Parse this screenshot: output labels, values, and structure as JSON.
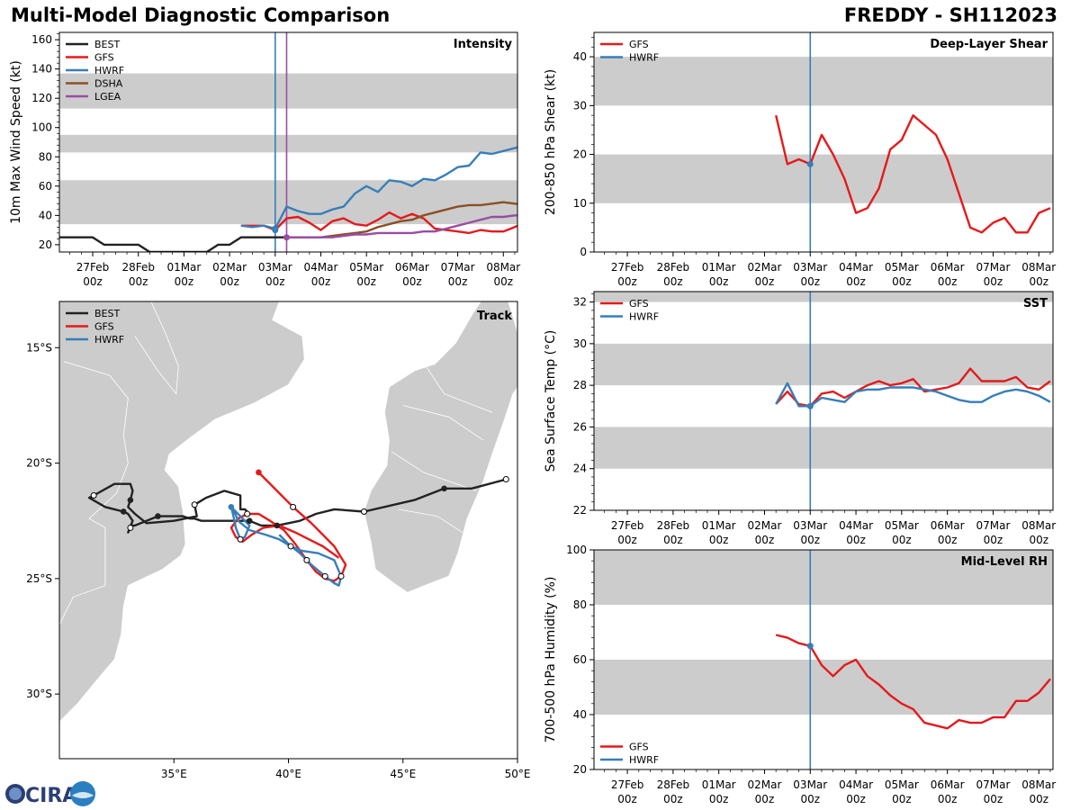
{
  "header": {
    "title": "Multi-Model Diagnostic Comparison",
    "storm": "FREDDY - SH112023"
  },
  "logo": {
    "text": "CIRA"
  },
  "colors": {
    "BEST": "#222222",
    "GFS": "#e41a1c",
    "HWRF": "#377eb8",
    "DSHA": "#8c4f24",
    "LGEA": "#984ea3",
    "band": "#cccccc",
    "land": "#cccccc"
  },
  "time_axis": {
    "ticks": [
      [
        "27Feb",
        "00z"
      ],
      [
        "28Feb",
        "00z"
      ],
      [
        "01Mar",
        "00z"
      ],
      [
        "02Mar",
        "00z"
      ],
      [
        "03Mar",
        "00z"
      ],
      [
        "04Mar",
        "00z"
      ],
      [
        "05Mar",
        "00z"
      ],
      [
        "06Mar",
        "00z"
      ],
      [
        "07Mar",
        "00z"
      ],
      [
        "08Mar",
        "00z"
      ]
    ],
    "tick_days": [
      1,
      2,
      3,
      4,
      5,
      6,
      7,
      8,
      9,
      10
    ],
    "xlim": [
      0.27,
      10.31
    ],
    "current_day": 5.0
  },
  "chart_data": [
    {
      "type": "line",
      "panel_label": "Intensity",
      "ylabel": "10m Max Wind Speed (kt)",
      "ylim": [
        15,
        165
      ],
      "yticks": [
        20,
        40,
        60,
        80,
        100,
        120,
        140,
        160
      ],
      "bands": [
        [
          34,
          64
        ],
        [
          83,
          95
        ],
        [
          113,
          137
        ]
      ],
      "lgea_marker_day": 5.25,
      "legend": "top-left",
      "series": [
        {
          "name": "BEST",
          "key": "BEST",
          "x": [
            0.25,
            1,
            1.25,
            2,
            2.25,
            3,
            3.5,
            3.75,
            4,
            4.25,
            5,
            5.25
          ],
          "y": [
            25,
            25,
            20,
            20,
            15,
            15,
            15,
            20,
            20,
            25,
            25,
            25
          ]
        },
        {
          "name": "GFS",
          "key": "GFS",
          "x": [
            4.25,
            4.5,
            4.75,
            5,
            5.25,
            5.5,
            5.75,
            6,
            6.25,
            6.5,
            6.75,
            7,
            7.25,
            7.5,
            7.75,
            8,
            8.25,
            8.5,
            8.75,
            9,
            9.25,
            9.5,
            9.75,
            10,
            10.25,
            10.5
          ],
          "y": [
            33,
            33,
            33,
            30,
            38,
            39,
            35,
            30,
            36,
            38,
            34,
            33,
            37,
            42,
            38,
            41,
            38,
            31,
            30,
            29,
            28,
            30,
            29,
            29,
            32,
            36
          ]
        },
        {
          "name": "HWRF",
          "key": "HWRF",
          "x": [
            4.25,
            4.5,
            4.75,
            5,
            5.25,
            5.5,
            5.75,
            6,
            6.25,
            6.5,
            6.75,
            7,
            7.25,
            7.5,
            7.75,
            8,
            8.25,
            8.5,
            8.75,
            9,
            9.25,
            9.5,
            9.75,
            10,
            10.25,
            10.5
          ],
          "y": [
            33,
            32,
            33,
            31,
            46,
            43,
            41,
            41,
            44,
            46,
            55,
            60,
            56,
            64,
            63,
            60,
            65,
            64,
            68,
            73,
            74,
            83,
            82,
            84,
            86,
            88
          ]
        },
        {
          "name": "DSHA",
          "key": "DSHA",
          "x": [
            5.25,
            5.5,
            5.75,
            6,
            6.25,
            6.5,
            6.75,
            7,
            7.25,
            7.5,
            7.75,
            8,
            8.25,
            8.5,
            8.75,
            9,
            9.25,
            9.5,
            9.75,
            10,
            10.25,
            10.5
          ],
          "y": [
            25,
            25,
            25,
            25,
            26,
            27,
            28,
            29,
            32,
            34,
            36,
            37,
            40,
            42,
            44,
            46,
            47,
            47,
            48,
            49,
            48,
            47
          ]
        },
        {
          "name": "LGEA",
          "key": "LGEA",
          "x": [
            5.25,
            5.5,
            5.75,
            6,
            6.25,
            6.5,
            6.75,
            7,
            7.25,
            7.5,
            7.75,
            8,
            8.25,
            8.5,
            8.75,
            9,
            9.25,
            9.5,
            9.75,
            10,
            10.25,
            10.5
          ],
          "y": [
            25,
            25,
            25,
            25,
            25,
            26,
            27,
            27,
            28,
            28,
            28,
            28,
            29,
            29,
            31,
            33,
            35,
            37,
            39,
            39,
            40,
            40
          ]
        }
      ]
    },
    {
      "type": "line",
      "panel_label": "Deep-Layer Shear",
      "ylabel": "200-850 hPa Shear (kt)",
      "ylim": [
        0,
        45
      ],
      "yticks": [
        0,
        10,
        20,
        30,
        40
      ],
      "bands": [
        [
          10,
          20
        ],
        [
          30,
          40
        ]
      ],
      "legend": "top-left",
      "series": [
        {
          "name": "GFS",
          "key": "GFS",
          "x": [
            4.25,
            4.5,
            4.75,
            5,
            5.25,
            5.5,
            5.75,
            6,
            6.25,
            6.5,
            6.75,
            7,
            7.25,
            7.5,
            7.75,
            8,
            8.25,
            8.5,
            8.75,
            9,
            9.25,
            9.5,
            9.75,
            10,
            10.25
          ],
          "y": [
            28,
            18,
            19,
            18,
            24,
            20,
            15,
            8,
            9,
            13,
            21,
            23,
            28,
            26,
            24,
            19,
            12,
            5,
            4,
            6,
            7,
            4,
            4,
            8,
            9
          ]
        },
        {
          "name": "HWRF",
          "key": "HWRF",
          "x": [],
          "y": []
        }
      ]
    },
    {
      "type": "line",
      "panel_label": "SST",
      "ylabel": "Sea Surface Temp (°C)",
      "ylim": [
        22,
        32.5
      ],
      "yticks": [
        22,
        24,
        26,
        28,
        30,
        32
      ],
      "bands": [
        [
          24,
          26
        ],
        [
          28,
          30
        ],
        [
          32,
          34
        ]
      ],
      "legend": "top-left",
      "series": [
        {
          "name": "GFS",
          "key": "GFS",
          "x": [
            4.25,
            4.5,
            4.75,
            5,
            5.25,
            5.5,
            5.75,
            6,
            6.25,
            6.5,
            6.75,
            7,
            7.25,
            7.5,
            7.75,
            8,
            8.25,
            8.5,
            8.75,
            9,
            9.25,
            9.5,
            9.75,
            10,
            10.25
          ],
          "y": [
            27.1,
            27.7,
            27.1,
            27.0,
            27.6,
            27.7,
            27.4,
            27.7,
            28.0,
            28.2,
            28.0,
            28.1,
            28.3,
            27.7,
            27.8,
            27.9,
            28.1,
            28.8,
            28.2,
            28.2,
            28.2,
            28.4,
            27.9,
            27.8,
            28.2
          ]
        },
        {
          "name": "HWRF",
          "key": "HWRF",
          "x": [
            4.25,
            4.5,
            4.75,
            5,
            5.25,
            5.5,
            5.75,
            6,
            6.25,
            6.5,
            6.75,
            7,
            7.25,
            7.5,
            7.75,
            8,
            8.25,
            8.5,
            8.75,
            9,
            9.25,
            9.5,
            9.75,
            10,
            10.25
          ],
          "y": [
            27.1,
            28.1,
            27.0,
            27.0,
            27.4,
            27.3,
            27.2,
            27.7,
            27.8,
            27.8,
            27.9,
            27.9,
            27.9,
            27.8,
            27.7,
            27.5,
            27.3,
            27.2,
            27.2,
            27.5,
            27.7,
            27.8,
            27.7,
            27.5,
            27.2
          ]
        }
      ]
    },
    {
      "type": "line",
      "panel_label": "Mid-Level RH",
      "ylabel": "700-500 hPa Humidity (%)",
      "ylim": [
        20,
        100
      ],
      "yticks": [
        20,
        40,
        60,
        80,
        100
      ],
      "bands": [
        [
          40,
          60
        ],
        [
          80,
          100
        ]
      ],
      "legend": "bottom-left",
      "series": [
        {
          "name": "GFS",
          "key": "GFS",
          "x": [
            4.25,
            4.5,
            4.75,
            5,
            5.25,
            5.5,
            5.75,
            6,
            6.25,
            6.5,
            6.75,
            7,
            7.25,
            7.5,
            7.75,
            8,
            8.25,
            8.5,
            8.75,
            9,
            9.25,
            9.5,
            9.75,
            10,
            10.25
          ],
          "y": [
            69,
            68,
            66,
            65,
            58,
            54,
            58,
            60,
            54,
            51,
            47,
            44,
            42,
            37,
            36,
            35,
            38,
            37,
            37,
            39,
            39,
            45,
            45,
            48,
            53
          ]
        },
        {
          "name": "HWRF",
          "key": "HWRF",
          "x": [],
          "y": []
        }
      ]
    },
    {
      "type": "scatter",
      "panel_label": "Track",
      "legend": "top-left",
      "xlim": [
        30,
        50
      ],
      "ylim": [
        -32.8,
        -13
      ],
      "xticks": [
        35,
        40,
        45,
        50
      ],
      "xtick_labels": [
        "35°E",
        "40°E",
        "45°E",
        "50°E"
      ],
      "yticks": [
        -15,
        -20,
        -25,
        -30
      ],
      "ytick_labels": [
        "15°S",
        "20°S",
        "25°S",
        "30°S"
      ],
      "series": [
        {
          "name": "BEST",
          "key": "BEST",
          "lon": [
            49.5,
            48.0,
            46.8,
            45.5,
            43.3,
            42.0,
            41.2,
            40.5,
            39.5,
            38.8,
            38.3,
            37.8,
            37.5,
            36.2,
            35.9,
            35.7,
            35.4,
            34.8,
            34.3,
            33.8,
            33.3,
            33.2,
            33.1,
            33.0,
            33.2,
            33.0,
            32.8,
            32.4,
            32.0,
            31.3,
            31.5,
            32.4,
            33.1,
            33.2,
            33.1,
            33.0,
            33.3,
            33.8,
            35.0,
            36.0,
            35.9,
            36.4,
            37.2,
            37.9,
            37.9,
            38.1,
            38.3
          ],
          "lat": [
            -20.7,
            -21.1,
            -21.1,
            -21.6,
            -22.1,
            -22.0,
            -22.2,
            -22.5,
            -22.7,
            -22.7,
            -22.5,
            -22.5,
            -22.5,
            -22.5,
            -22.4,
            -22.4,
            -22.3,
            -22.3,
            -22.3,
            -22.5,
            -22.7,
            -22.7,
            -22.8,
            -23.0,
            -22.5,
            -22.2,
            -22.1,
            -22.0,
            -21.9,
            -21.5,
            -21.4,
            -20.9,
            -20.9,
            -21.2,
            -21.6,
            -21.9,
            -22.2,
            -22.6,
            -22.5,
            -22.3,
            -21.8,
            -21.5,
            -21.2,
            -21.4,
            -22.0,
            -22.0,
            -22.2
          ],
          "markers_filled": [
            2,
            8,
            10,
            18,
            26,
            34
          ],
          "markers_open": [
            0,
            4,
            22,
            30,
            40
          ]
        },
        {
          "name": "GFS",
          "key": "GFS",
          "lon": [
            38.7,
            39.5,
            40.2,
            41.0,
            41.5,
            42.0,
            42.5,
            42.3,
            42.0,
            41.6,
            41.2,
            40.8,
            40.3,
            39.8,
            39.2,
            38.7,
            38.2,
            37.8,
            37.5,
            37.7,
            38.0,
            38.4,
            38.9,
            39.6,
            40.3,
            40.9,
            41.5,
            42.2
          ],
          "lat": [
            -20.4,
            -21.2,
            -21.9,
            -22.6,
            -23.1,
            -23.6,
            -24.4,
            -24.9,
            -25.1,
            -25.0,
            -24.7,
            -24.2,
            -23.5,
            -22.9,
            -22.5,
            -22.2,
            -22.2,
            -22.4,
            -22.8,
            -23.2,
            -23.4,
            -23.1,
            -22.8,
            -22.7,
            -23.0,
            -23.3,
            -23.6,
            -24.1
          ],
          "markers_filled": [
            0
          ],
          "markers_open": [
            2,
            11,
            16
          ]
        },
        {
          "name": "HWRF",
          "key": "HWRF",
          "lon": [
            37.5,
            37.6,
            37.7,
            37.9,
            38.1,
            38.3,
            38.0,
            37.8,
            37.6,
            37.8,
            38.3,
            39.0,
            39.6,
            40.1,
            40.6,
            41.3,
            42.0,
            42.3,
            42.2,
            42.0,
            41.6,
            41.0,
            40.5,
            40.0,
            39.6
          ],
          "lat": [
            -21.9,
            -22.3,
            -22.8,
            -23.3,
            -23.2,
            -22.7,
            -22.4,
            -22.2,
            -22.0,
            -22.5,
            -22.9,
            -23.1,
            -23.3,
            -23.6,
            -23.8,
            -23.9,
            -24.2,
            -24.9,
            -25.3,
            -25.2,
            -24.9,
            -24.4,
            -23.9,
            -23.5,
            -23.1
          ],
          "markers_filled": [
            0
          ],
          "markers_open": [
            3,
            13,
            17,
            20
          ]
        }
      ]
    }
  ]
}
